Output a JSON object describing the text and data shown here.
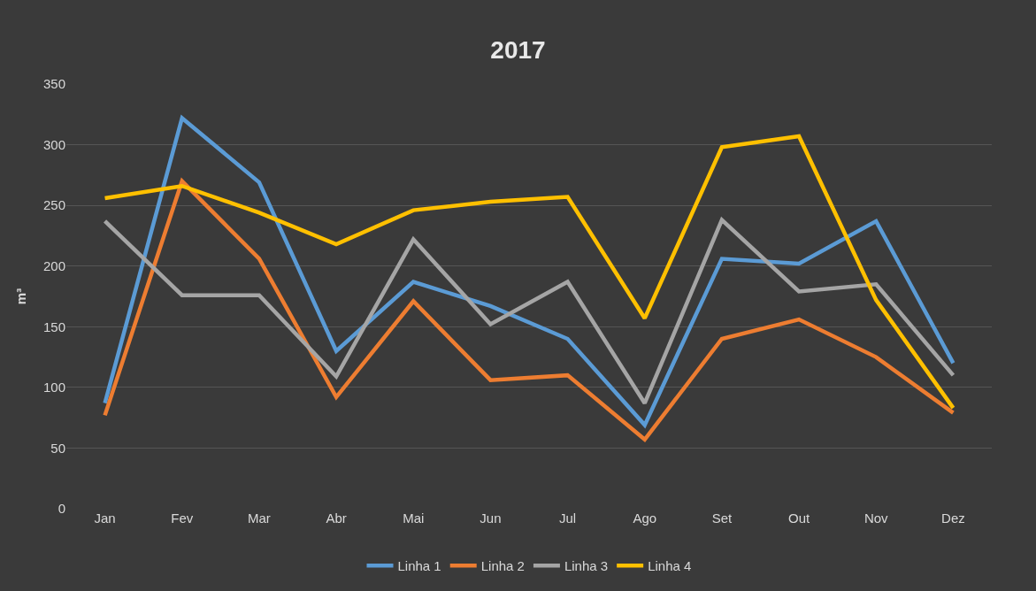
{
  "chart_data": {
    "type": "line",
    "title": "2017",
    "ylabel": "m³",
    "categories": [
      "Jan",
      "Fev",
      "Mar",
      "Abr",
      "Mai",
      "Jun",
      "Jul",
      "Ago",
      "Set",
      "Out",
      "Nov",
      "Dez"
    ],
    "series": [
      {
        "name": "Linha 1",
        "color": "#5b9bd5",
        "values": [
          87,
          322,
          269,
          130,
          187,
          167,
          140,
          69,
          206,
          202,
          237,
          120
        ]
      },
      {
        "name": "Linha 2",
        "color": "#ed7d31",
        "values": [
          77,
          270,
          206,
          92,
          171,
          106,
          110,
          57,
          140,
          156,
          125,
          79
        ]
      },
      {
        "name": "Linha 3",
        "color": "#a5a5a5",
        "values": [
          237,
          176,
          176,
          109,
          222,
          152,
          187,
          87,
          238,
          179,
          185,
          110
        ]
      },
      {
        "name": "Linha 4",
        "color": "#ffc000",
        "values": [
          256,
          266,
          244,
          218,
          246,
          253,
          257,
          157,
          298,
          307,
          172,
          83
        ]
      }
    ],
    "ylim": [
      0,
      350
    ],
    "yticks": [
      0,
      50,
      100,
      150,
      200,
      250,
      300,
      350
    ],
    "grid": "y",
    "legend": "bottom",
    "marker": "none",
    "line_style": "solid"
  }
}
